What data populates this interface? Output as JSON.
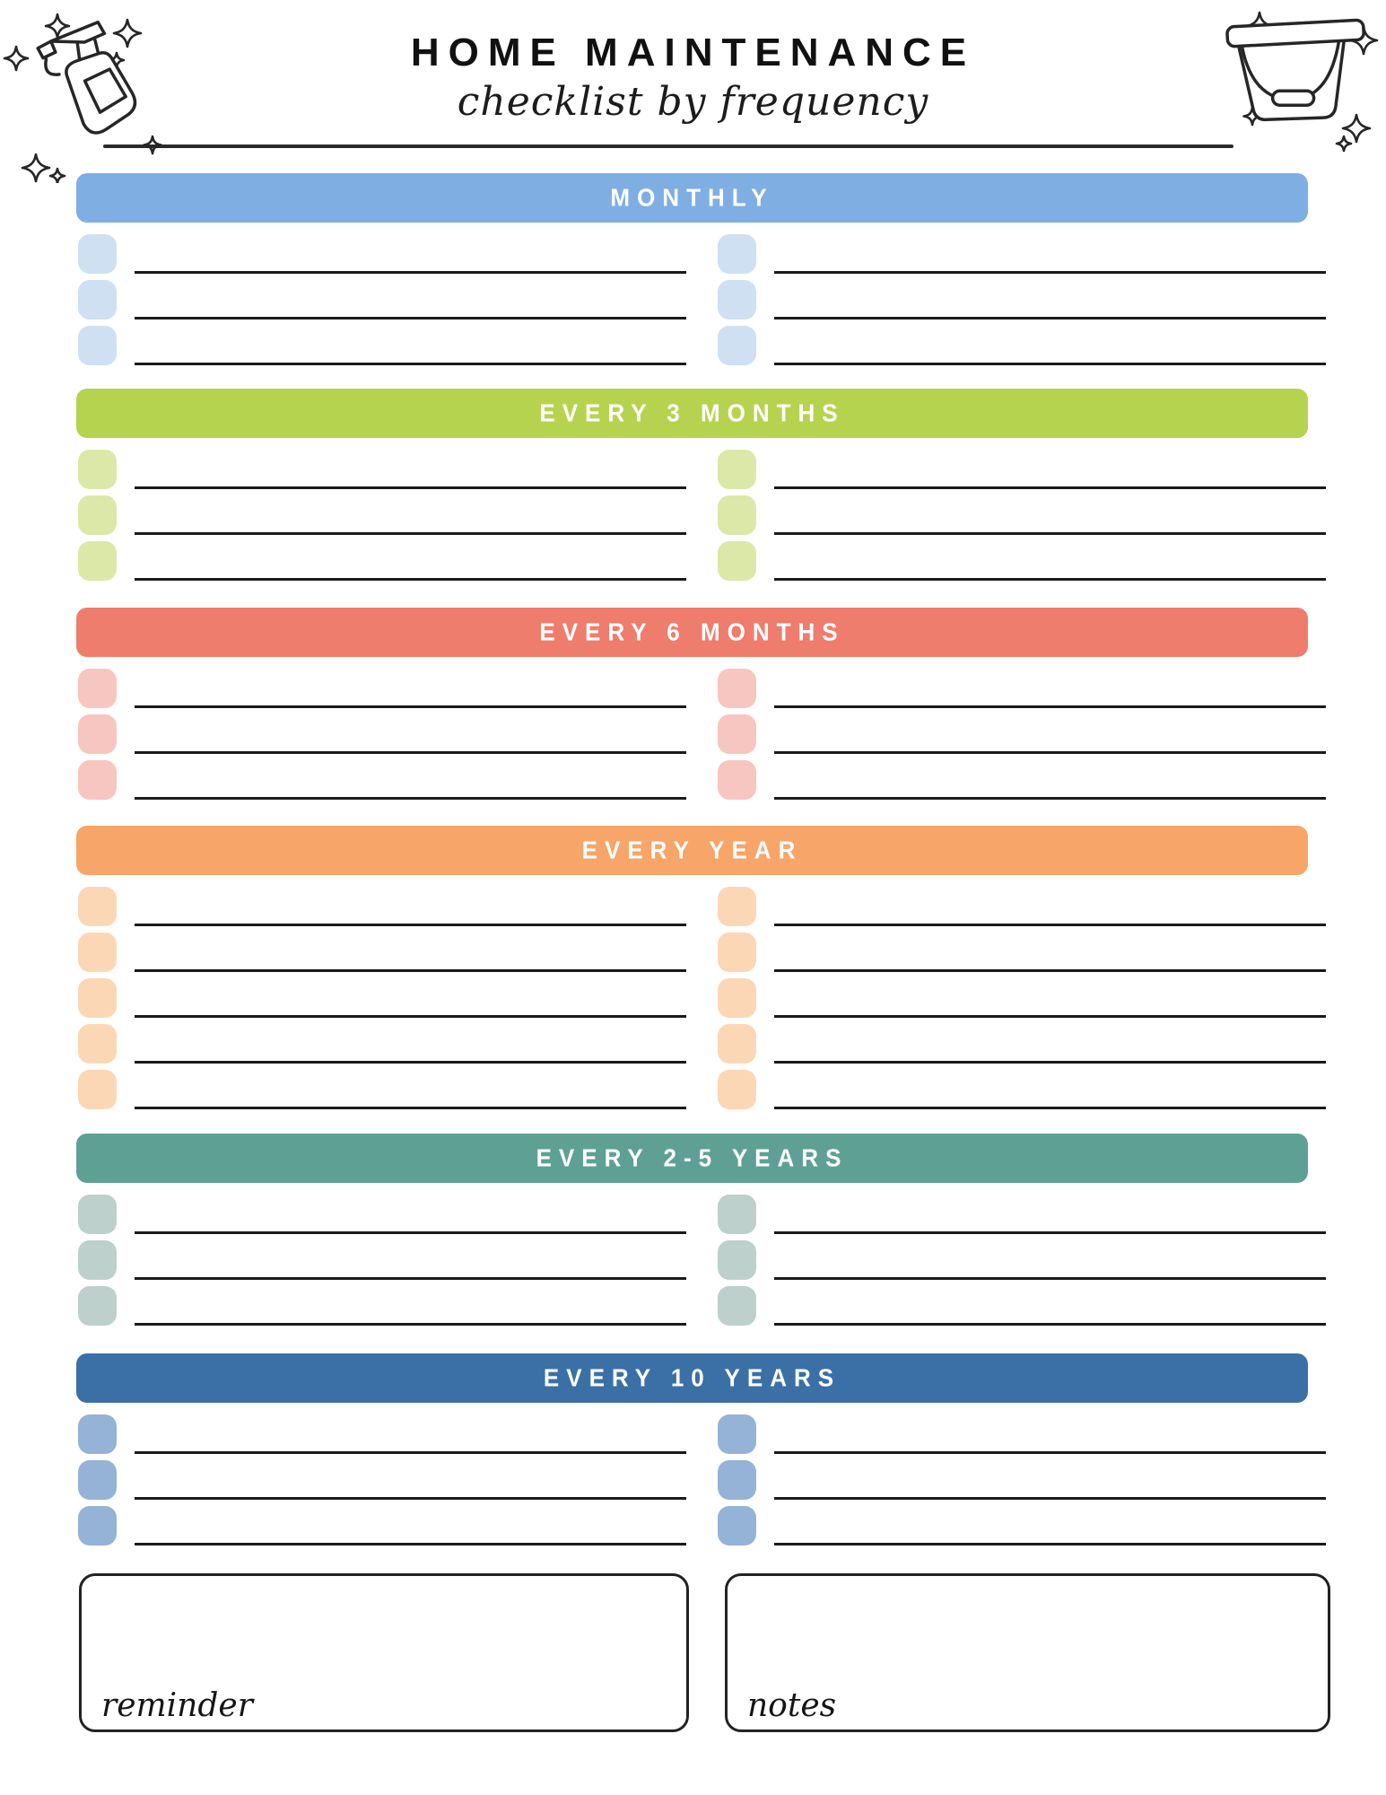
{
  "page": {
    "title": "HOME MAINTENANCE",
    "subtitle": "checklist by frequency"
  },
  "icons": {
    "left": "spray-bottle-icon",
    "right": "bucket-icon"
  },
  "sections": [
    {
      "label": "MONTHLY",
      "bar_color": "#7FAEE3",
      "checkbox_color": "#CFE0F2",
      "rows_per_column": 3,
      "columns": 2
    },
    {
      "label": "EVERY 3 MONTHS",
      "bar_color": "#B6D34F",
      "checkbox_color": "#DCE8A7",
      "rows_per_column": 3,
      "columns": 2
    },
    {
      "label": "EVERY 6 MONTHS",
      "bar_color": "#EE7D6E",
      "checkbox_color": "#F8C6C0",
      "rows_per_column": 3,
      "columns": 2
    },
    {
      "label": "EVERY YEAR",
      "bar_color": "#F7A568",
      "checkbox_color": "#FCD7B6",
      "rows_per_column": 5,
      "columns": 2
    },
    {
      "label": "EVERY 2-5 YEARS",
      "bar_color": "#5FA095",
      "checkbox_color": "#BDD0CB",
      "rows_per_column": 3,
      "columns": 2
    },
    {
      "label": "EVERY 10 YEARS",
      "bar_color": "#3B70A6",
      "checkbox_color": "#94B3D6",
      "rows_per_column": 3,
      "columns": 2
    }
  ],
  "footer": {
    "boxes": [
      {
        "label": "reminder"
      },
      {
        "label": "notes"
      }
    ]
  },
  "style": {
    "line_color": "#1a1a1a",
    "ink_color": "#262626"
  }
}
